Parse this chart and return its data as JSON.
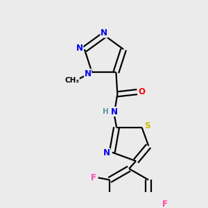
{
  "bg_color": "#ebebeb",
  "bond_color": "#000000",
  "atom_colors": {
    "N": "#0000ee",
    "O": "#ff0000",
    "S": "#ccbb00",
    "F": "#ff44aa",
    "H": "#559999",
    "C": "#000000"
  },
  "lw": 1.6,
  "fs": 8.5,
  "xlim": [
    0,
    10
  ],
  "ylim": [
    0,
    10
  ]
}
